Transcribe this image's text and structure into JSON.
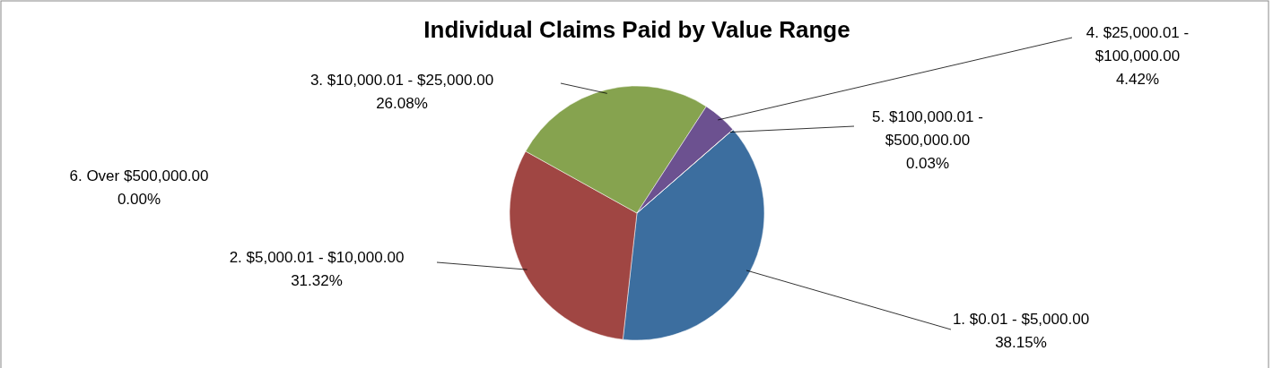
{
  "chart_data": {
    "type": "pie",
    "title": "Individual Claims Paid by Value Range",
    "categories": [
      "1. $0.01 - $5,000.00",
      "2. $5,000.01 - $10,000.00",
      "3. $10,000.01 - $25,000.00",
      "4. $25,000.01 - $100,000.00",
      "5. $100,000.01 - $500,000.00",
      "6. Over $500,000.00"
    ],
    "values": [
      38.15,
      31.32,
      26.08,
      4.42,
      0.03,
      0.0
    ],
    "value_labels": [
      "38.15%",
      "31.32%",
      "26.08%",
      "4.42%",
      "0.03%",
      "0.00%"
    ],
    "colors": [
      "#3c6e9f",
      "#a04643",
      "#86a34f",
      "#6c5190",
      "#e07b39",
      "#4aa0b8"
    ],
    "data_labels": true
  }
}
